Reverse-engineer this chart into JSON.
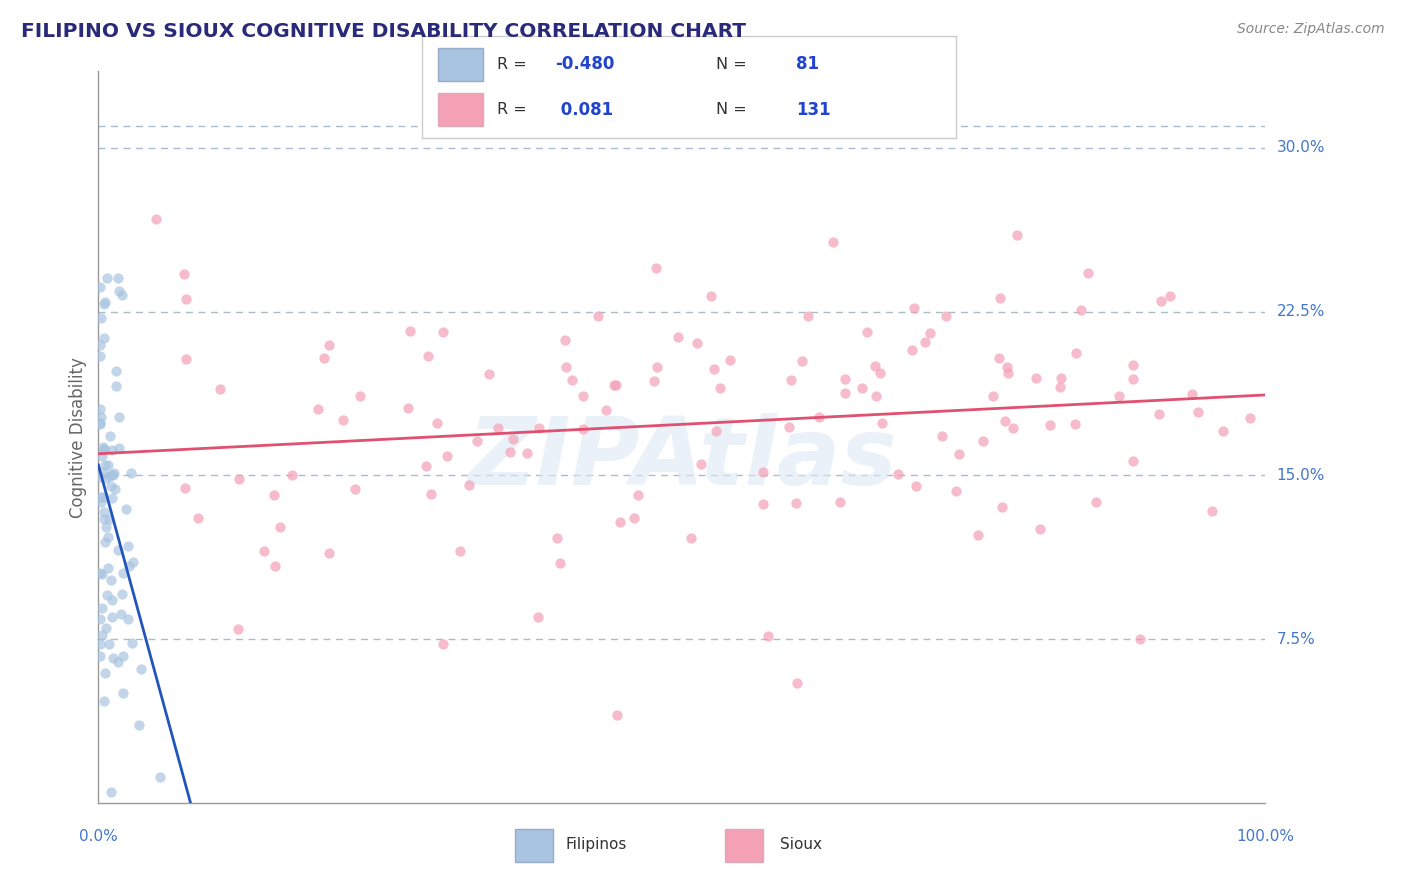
{
  "title": "FILIPINO VS SIOUX COGNITIVE DISABILITY CORRELATION CHART",
  "source": "Source: ZipAtlas.com",
  "ylabel": "Cognitive Disability",
  "y_ticks_labels": [
    "7.5%",
    "15.0%",
    "22.5%",
    "30.0%"
  ],
  "y_tick_vals": [
    0.075,
    0.15,
    0.225,
    0.3
  ],
  "y_lim": [
    0.0,
    0.335
  ],
  "x_lim": [
    0.0,
    1.0
  ],
  "filipino_color": "#a8c4e0",
  "sioux_color": "#f4a0b5",
  "filipino_line_color": "#2255bb",
  "sioux_line_color": "#e05070",
  "title_color": "#2a2a7a",
  "source_color": "#888888",
  "watermark": "ZIPAtlas",
  "watermark_color": "#dde8f4",
  "background_color": "#ffffff",
  "R_filipino": -0.48,
  "R_sioux": 0.081,
  "N_filipino": 81,
  "N_sioux": 131,
  "grid_color": "#aabbcc",
  "grid_style": "--",
  "scatter_alpha": 0.7,
  "scatter_size": 55,
  "ylabel_color": "#666666",
  "axis_label_color": "#4477cc",
  "legend_text_color_rn": "#333333",
  "legend_value_color": "#2244cc"
}
